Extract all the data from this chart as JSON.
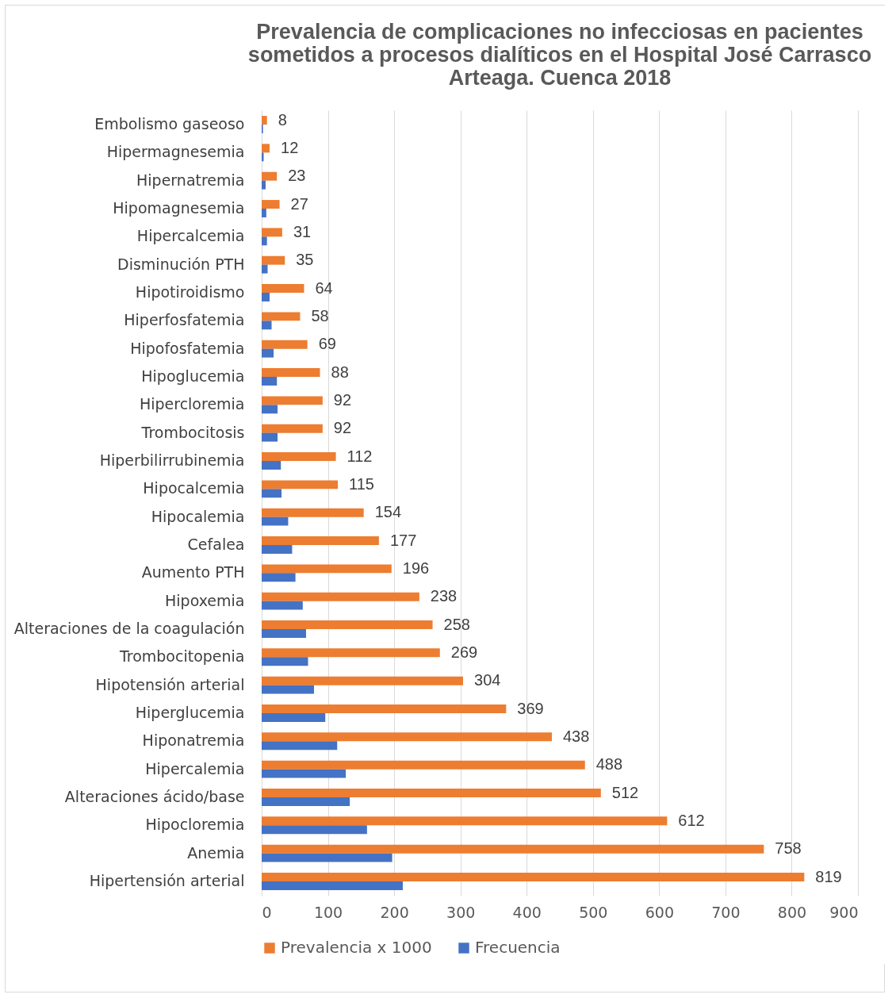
{
  "chart_data": {
    "type": "bar",
    "orientation": "horizontal",
    "title": "Prevalencia de complicaciones no infecciosas en pacientes sometidos a procesos dialíticos en el Hospital José Carrasco Arteaga. Cuenca 2018",
    "categories": [
      "Embolismo gaseoso",
      "Hipermagnesemia",
      "Hipernatremia",
      "Hipomagnesemia",
      "Hipercalcemia",
      "Disminución PTH",
      "Hipotiroidismo",
      "Hiperfosfatemia",
      "Hipofosfatemia",
      "Hipoglucemia",
      "Hipercloremia",
      "Trombocitosis",
      "Hiperbilirrubinemia",
      "Hipocalcemia",
      "Hipocalemia",
      "Cefalea",
      "Aumento PTH",
      "Hipoxemia",
      "Alteraciones de la coagulación",
      "Trombocitopenia",
      "Hipotensión arterial",
      "Hiperglucemia",
      "Hiponatremia",
      "Hipercalemia",
      "Alteraciones ácido/base",
      "Hipocloremia",
      "Anemia",
      "Hipertensión arterial"
    ],
    "series": [
      {
        "name": "Prevalencia x 1000",
        "color": "#ed7d31",
        "values": [
          8,
          12,
          23,
          27,
          31,
          35,
          64,
          58,
          69,
          88,
          92,
          92,
          112,
          115,
          154,
          177,
          196,
          238,
          258,
          269,
          304,
          369,
          438,
          488,
          512,
          612,
          758,
          819
        ],
        "value_labels": [
          "8",
          "12",
          "23",
          "27",
          "31",
          "35",
          "64",
          "58",
          "69",
          "88",
          "92",
          "92",
          "112",
          "115",
          "154",
          "177",
          "196",
          "238",
          "258",
          "269",
          "304",
          "369",
          "438",
          "488",
          "512",
          "612",
          "758",
          "819"
        ]
      },
      {
        "name": "Frecuencia",
        "color": "#4472c4",
        "values": [
          2,
          3,
          6,
          7,
          8,
          9,
          12,
          15,
          18,
          23,
          24,
          24,
          29,
          30,
          40,
          46,
          51,
          62,
          67,
          70,
          79,
          96,
          114,
          127,
          133,
          159,
          197,
          213
        ]
      }
    ],
    "xlim": [
      0,
      900
    ],
    "xticks": [
      0,
      100,
      200,
      300,
      400,
      500,
      600,
      700,
      800,
      900
    ],
    "grid": "x",
    "legend": "bottom"
  }
}
